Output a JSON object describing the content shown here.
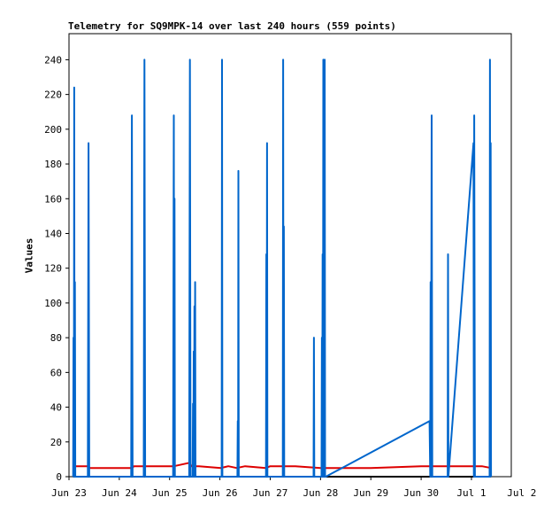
{
  "chart_data": {
    "type": "line",
    "title": "Telemetry for SQ9MPK-14 over last 240 hours (559 points)",
    "xlabel": "",
    "ylabel": "Values",
    "ylim": [
      0,
      255
    ],
    "yticks": [
      0,
      20,
      40,
      60,
      80,
      100,
      120,
      140,
      160,
      180,
      200,
      220,
      240
    ],
    "xlim": [
      "2023-06-23T00:00",
      "2023-07-01T19:00"
    ],
    "xticks": [
      {
        "date": "2023-06-23T00:00",
        "label": "Jun 23"
      },
      {
        "date": "2023-06-24T00:00",
        "label": "Jun 24"
      },
      {
        "date": "2023-06-25T00:00",
        "label": "Jun 25"
      },
      {
        "date": "2023-06-26T00:00",
        "label": "Jun 26"
      },
      {
        "date": "2023-06-27T00:00",
        "label": "Jun 27"
      },
      {
        "date": "2023-06-28T00:00",
        "label": "Jun 28"
      },
      {
        "date": "2023-06-29T00:00",
        "label": "Jun 29"
      },
      {
        "date": "2023-06-30T00:00",
        "label": "Jun 30"
      },
      {
        "date": "2023-07-01T00:00",
        "label": "Jul 1"
      },
      {
        "date": "2023-07-02T00:00",
        "label": "Jul 2"
      }
    ],
    "grid": false,
    "colors": [
      "#0066cc",
      "#dd0000",
      "#000000"
    ],
    "series": [
      {
        "points": [
          [
            "2023-06-23T02:00",
            0
          ],
          [
            "2023-06-23T02:10",
            80
          ],
          [
            "2023-06-23T02:20",
            0
          ],
          [
            "2023-06-23T02:30",
            224
          ],
          [
            "2023-06-23T02:40",
            0
          ],
          [
            "2023-06-23T02:50",
            112
          ],
          [
            "2023-06-23T03:00",
            0
          ],
          [
            "2023-06-23T09:00",
            0
          ],
          [
            "2023-06-23T09:20",
            192
          ],
          [
            "2023-06-23T09:40",
            0
          ],
          [
            "2023-06-24T05:40",
            0
          ],
          [
            "2023-06-24T06:00",
            208
          ],
          [
            "2023-06-24T06:20",
            0
          ],
          [
            "2023-06-24T11:40",
            0
          ],
          [
            "2023-06-24T12:00",
            240
          ],
          [
            "2023-06-24T12:20",
            0
          ],
          [
            "2023-06-25T01:40",
            0
          ],
          [
            "2023-06-25T02:00",
            208
          ],
          [
            "2023-06-25T02:10",
            0
          ],
          [
            "2023-06-25T02:20",
            160
          ],
          [
            "2023-06-25T02:30",
            0
          ],
          [
            "2023-06-25T09:20",
            0
          ],
          [
            "2023-06-25T09:40",
            240
          ],
          [
            "2023-06-25T10:00",
            0
          ],
          [
            "2023-06-25T11:00",
            0
          ],
          [
            "2023-06-25T11:10",
            42
          ],
          [
            "2023-06-25T11:20",
            0
          ],
          [
            "2023-06-25T11:30",
            72
          ],
          [
            "2023-06-25T11:40",
            0
          ],
          [
            "2023-06-25T11:50",
            98
          ],
          [
            "2023-06-25T12:00",
            0
          ],
          [
            "2023-06-25T12:10",
            112
          ],
          [
            "2023-06-25T12:20",
            0
          ],
          [
            "2023-06-26T00:50",
            0
          ],
          [
            "2023-06-26T01:00",
            240
          ],
          [
            "2023-06-26T01:10",
            0
          ],
          [
            "2023-06-26T08:20",
            0
          ],
          [
            "2023-06-26T08:30",
            32
          ],
          [
            "2023-06-26T08:40",
            0
          ],
          [
            "2023-06-26T08:50",
            176
          ],
          [
            "2023-06-26T09:00",
            0
          ],
          [
            "2023-06-26T22:00",
            0
          ],
          [
            "2023-06-26T22:10",
            128
          ],
          [
            "2023-06-26T22:20",
            0
          ],
          [
            "2023-06-26T22:30",
            192
          ],
          [
            "2023-06-26T22:40",
            0
          ],
          [
            "2023-06-27T06:00",
            0
          ],
          [
            "2023-06-27T06:10",
            240
          ],
          [
            "2023-06-27T06:20",
            0
          ],
          [
            "2023-06-27T06:30",
            144
          ],
          [
            "2023-06-27T06:40",
            0
          ],
          [
            "2023-06-27T20:40",
            0
          ],
          [
            "2023-06-27T20:50",
            80
          ],
          [
            "2023-06-27T21:00",
            0
          ],
          [
            "2023-06-28T00:30",
            0
          ],
          [
            "2023-06-28T00:40",
            80
          ],
          [
            "2023-06-28T00:50",
            0
          ],
          [
            "2023-06-28T01:00",
            128
          ],
          [
            "2023-06-28T01:10",
            0
          ],
          [
            "2023-06-28T01:20",
            240
          ],
          [
            "2023-06-28T01:30",
            0
          ],
          [
            "2023-06-28T01:40",
            192
          ],
          [
            "2023-06-28T01:50",
            0
          ],
          [
            "2023-06-28T02:00",
            240
          ],
          [
            "2023-06-28T02:10",
            0
          ],
          [
            "2023-06-28T02:30",
            0
          ],
          [
            "2023-06-30T04:00",
            32
          ],
          [
            "2023-06-30T04:20",
            0
          ],
          [
            "2023-06-30T04:30",
            112
          ],
          [
            "2023-06-30T04:40",
            0
          ],
          [
            "2023-06-30T05:00",
            208
          ],
          [
            "2023-06-30T05:20",
            0
          ],
          [
            "2023-06-30T12:40",
            0
          ],
          [
            "2023-06-30T12:50",
            128
          ],
          [
            "2023-06-30T13:00",
            0
          ],
          [
            "2023-07-01T01:00",
            192
          ],
          [
            "2023-07-01T01:10",
            0
          ],
          [
            "2023-07-01T01:20",
            208
          ],
          [
            "2023-07-01T01:40",
            0
          ],
          [
            "2023-07-01T08:40",
            0
          ],
          [
            "2023-07-01T08:50",
            240
          ],
          [
            "2023-07-01T09:00",
            0
          ],
          [
            "2023-07-01T09:10",
            192
          ],
          [
            "2023-07-01T09:20",
            0
          ]
        ]
      },
      {
        "points": [
          [
            "2023-06-23T02:00",
            6
          ],
          [
            "2023-06-23T09:00",
            6
          ],
          [
            "2023-06-23T10:00",
            5
          ],
          [
            "2023-06-24T06:00",
            5
          ],
          [
            "2023-06-24T07:00",
            6
          ],
          [
            "2023-06-25T02:00",
            6
          ],
          [
            "2023-06-25T09:30",
            8
          ],
          [
            "2023-06-25T10:30",
            6
          ],
          [
            "2023-06-25T14:00",
            6
          ],
          [
            "2023-06-26T00:30",
            5
          ],
          [
            "2023-06-26T04:00",
            6
          ],
          [
            "2023-06-26T08:00",
            5
          ],
          [
            "2023-06-26T12:00",
            6
          ],
          [
            "2023-06-26T22:00",
            5
          ],
          [
            "2023-06-27T00:00",
            6
          ],
          [
            "2023-06-27T12:00",
            6
          ],
          [
            "2023-06-28T00:00",
            5
          ],
          [
            "2023-06-28T04:00",
            5
          ],
          [
            "2023-06-29T00:00",
            5
          ],
          [
            "2023-06-30T00:00",
            6
          ],
          [
            "2023-07-01T00:00",
            6
          ],
          [
            "2023-07-01T05:00",
            6
          ],
          [
            "2023-07-01T09:20",
            5
          ]
        ]
      },
      {
        "points": [
          [
            "2023-06-23T02:00",
            0
          ],
          [
            "2023-07-01T09:20",
            0
          ]
        ]
      }
    ]
  }
}
